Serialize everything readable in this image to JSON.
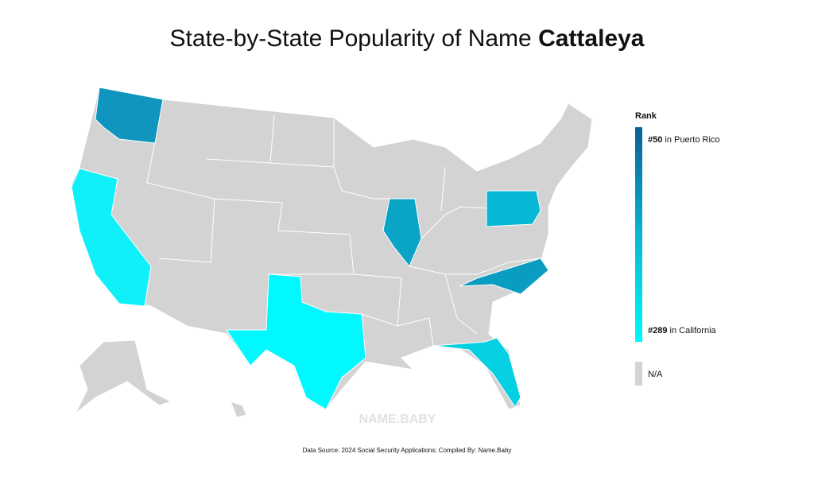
{
  "header": {
    "title": "State-by-State Popularity of Name",
    "name": "Cattaleya"
  },
  "legend": {
    "title": "Rank",
    "top": {
      "rank": "#50",
      "place": "in Puerto Rico"
    },
    "bottom": {
      "rank": "#289",
      "place": "in California"
    },
    "na": "N/A"
  },
  "watermark": "NAME.BABY",
  "footer": "Data Source: 2024 Social Security Applications; Compiled By: Name.Baby"
}
